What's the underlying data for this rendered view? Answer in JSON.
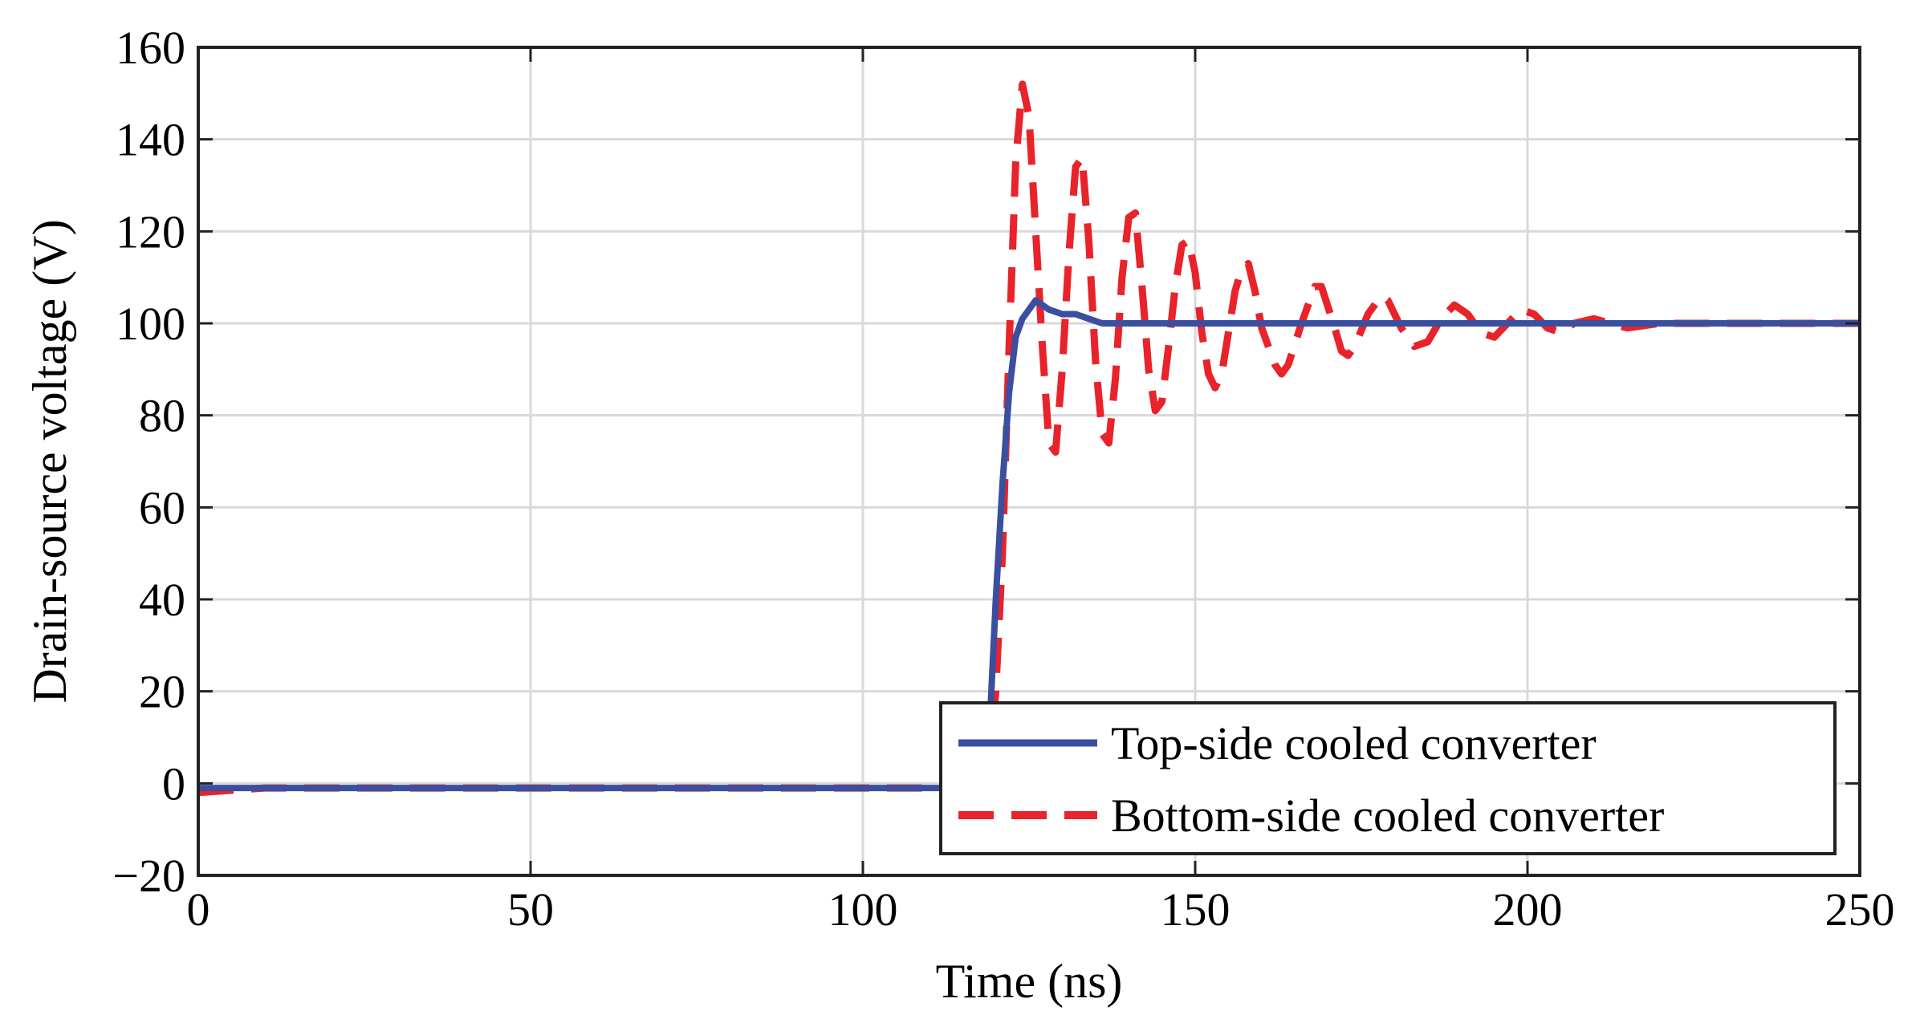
{
  "chart_data": {
    "type": "line",
    "title": "",
    "xlabel": "Time (ns)",
    "ylabel": "Drain-source voltage (V)",
    "xlim": [
      0,
      250
    ],
    "ylim": [
      -20,
      160
    ],
    "xticks": [
      0,
      50,
      100,
      150,
      200,
      250
    ],
    "yticks": [
      -20,
      0,
      20,
      40,
      60,
      80,
      100,
      120,
      140,
      160
    ],
    "xtick_labels": [
      "0",
      "50",
      "100",
      "150",
      "200",
      "250"
    ],
    "ytick_labels": [
      "−20",
      "0",
      "20",
      "40",
      "60",
      "80",
      "100",
      "120",
      "140",
      "160"
    ],
    "grid": true,
    "legend_position": "bottom-right",
    "series": [
      {
        "name": "Top-side cooled converter",
        "color": "#3a4fa0",
        "style": "solid",
        "points": [
          [
            0,
            -1
          ],
          [
            10,
            -1
          ],
          [
            20,
            -1
          ],
          [
            30,
            -1
          ],
          [
            40,
            -1
          ],
          [
            50,
            -1
          ],
          [
            60,
            -1
          ],
          [
            70,
            -1
          ],
          [
            80,
            -1
          ],
          [
            90,
            -1
          ],
          [
            100,
            -1
          ],
          [
            110,
            -1
          ],
          [
            118,
            -1
          ],
          [
            119,
            10
          ],
          [
            120,
            40
          ],
          [
            121,
            65
          ],
          [
            122,
            85
          ],
          [
            123,
            97
          ],
          [
            124,
            101
          ],
          [
            125,
            103
          ],
          [
            126,
            105
          ],
          [
            127,
            104
          ],
          [
            128,
            103
          ],
          [
            130,
            102
          ],
          [
            132,
            102
          ],
          [
            134,
            101
          ],
          [
            136,
            100
          ],
          [
            140,
            100
          ],
          [
            150,
            100
          ],
          [
            160,
            100
          ],
          [
            170,
            100
          ],
          [
            180,
            100
          ],
          [
            190,
            100
          ],
          [
            200,
            100
          ],
          [
            210,
            100
          ],
          [
            220,
            100
          ],
          [
            230,
            100
          ],
          [
            240,
            100
          ],
          [
            250,
            100
          ]
        ]
      },
      {
        "name": "Bottom-side cooled converter",
        "color": "#e8232a",
        "style": "dashed",
        "points": [
          [
            0,
            -2
          ],
          [
            10,
            -1
          ],
          [
            20,
            -1
          ],
          [
            30,
            -1
          ],
          [
            40,
            -1
          ],
          [
            50,
            -1
          ],
          [
            60,
            -1
          ],
          [
            70,
            -1
          ],
          [
            80,
            -1
          ],
          [
            90,
            -1
          ],
          [
            100,
            -1
          ],
          [
            110,
            -1
          ],
          [
            118,
            -1
          ],
          [
            119,
            5
          ],
          [
            120,
            20
          ],
          [
            121,
            50
          ],
          [
            122,
            95
          ],
          [
            123,
            135
          ],
          [
            124,
            152
          ],
          [
            125,
            145
          ],
          [
            126,
            120
          ],
          [
            127,
            95
          ],
          [
            128,
            74
          ],
          [
            129,
            72
          ],
          [
            130,
            90
          ],
          [
            131,
            115
          ],
          [
            132,
            134
          ],
          [
            133,
            136
          ],
          [
            134,
            118
          ],
          [
            135,
            92
          ],
          [
            136,
            76
          ],
          [
            137,
            74
          ],
          [
            138,
            88
          ],
          [
            139,
            110
          ],
          [
            140,
            123
          ],
          [
            141,
            124
          ],
          [
            142,
            108
          ],
          [
            143,
            90
          ],
          [
            144,
            81
          ],
          [
            145,
            83
          ],
          [
            146,
            95
          ],
          [
            147,
            108
          ],
          [
            148,
            117
          ],
          [
            149,
            118
          ],
          [
            150,
            111
          ],
          [
            151,
            98
          ],
          [
            152,
            89
          ],
          [
            153,
            86
          ],
          [
            154,
            89
          ],
          [
            155,
            98
          ],
          [
            156,
            107
          ],
          [
            157,
            112
          ],
          [
            158,
            113
          ],
          [
            159,
            107
          ],
          [
            160,
            99
          ],
          [
            162,
            91
          ],
          [
            163,
            89
          ],
          [
            164,
            91
          ],
          [
            166,
            100
          ],
          [
            168,
            108
          ],
          [
            169,
            108
          ],
          [
            171,
            99
          ],
          [
            172,
            94
          ],
          [
            173,
            93
          ],
          [
            174,
            95
          ],
          [
            176,
            102
          ],
          [
            178,
            106
          ],
          [
            179,
            105
          ],
          [
            181,
            99
          ],
          [
            183,
            95
          ],
          [
            185,
            96
          ],
          [
            187,
            101
          ],
          [
            189,
            104
          ],
          [
            191,
            102
          ],
          [
            193,
            98
          ],
          [
            195,
            97
          ],
          [
            197,
            100
          ],
          [
            199,
            103
          ],
          [
            201,
            102
          ],
          [
            203,
            99
          ],
          [
            205,
            98
          ],
          [
            207,
            100
          ],
          [
            210,
            101
          ],
          [
            215,
            99
          ],
          [
            220,
            100
          ],
          [
            230,
            100
          ],
          [
            240,
            100
          ],
          [
            250,
            100
          ]
        ]
      }
    ]
  }
}
